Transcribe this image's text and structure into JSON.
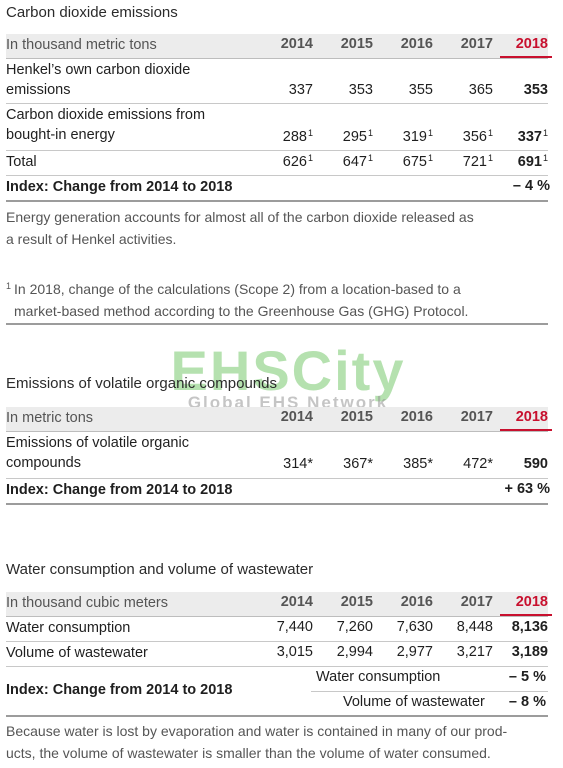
{
  "co2": {
    "title": "Carbon dioxide emissions",
    "unit_label": "In thousand metric tons",
    "years": [
      "2014",
      "2015",
      "2016",
      "2017",
      "2018"
    ],
    "rows": [
      {
        "label_line1": "Henkel’s own carbon dioxide",
        "label_line2": "emissions",
        "values": [
          "337",
          "353",
          "355",
          "365",
          "353"
        ]
      },
      {
        "label_line1": "Carbon dioxide emissions from",
        "label_line2": "bought-in energy",
        "values": [
          "288",
          "295",
          "319",
          "356",
          "337"
        ],
        "note": "1"
      },
      {
        "label": "Total",
        "values": [
          "626",
          "647",
          "675",
          "721",
          "691"
        ],
        "note": "1"
      }
    ],
    "index": {
      "label": "Index: Change from 2014 to 2018",
      "value": "– 4 %"
    },
    "paragraph_line1": "Energy generation accounts for almost all of the carbon dioxide released as",
    "paragraph_line2": "a result of Henkel activities.",
    "footnote_mark": "1",
    "footnote_line1": "In 2018, change of the calculations (Scope 2) from a location-based to a",
    "footnote_line2": "market-based method according to the Greenhouse Gas (GHG) Protocol."
  },
  "voc": {
    "title": "Emissions of volatile organic compounds",
    "unit_label": "In metric tons",
    "years": [
      "2014",
      "2015",
      "2016",
      "2017",
      "2018"
    ],
    "row": {
      "label_line1": "Emissions of volatile organic",
      "label_line2": "compounds",
      "values": [
        "314*",
        "367*",
        "385*",
        "472*",
        "590"
      ]
    },
    "index": {
      "label": "Index: Change from 2014 to 2018",
      "value": "+ 63 %"
    }
  },
  "water": {
    "title": "Water consumption and volume of wastewater",
    "unit_label": "In thousand cubic meters",
    "years": [
      "2014",
      "2015",
      "2016",
      "2017",
      "2018"
    ],
    "rows": [
      {
        "label": "Water consumption",
        "values": [
          "7,440",
          "7,260",
          "7,630",
          "8,448",
          "8,136"
        ]
      },
      {
        "label": "Volume of wastewater",
        "values": [
          "3,015",
          "2,994",
          "2,977",
          "3,217",
          "3,189"
        ]
      }
    ],
    "index": {
      "label": "Index: Change from 2014 to 2018",
      "sub": [
        {
          "label": "Water consumption",
          "value": "– 5 %"
        },
        {
          "label": "Volume of wastewater",
          "value": "– 8 %"
        }
      ]
    },
    "paragraph_line1": "Because water is lost by evaporation and water is contained in many of our prod-",
    "paragraph_line2": "ucts, the volume of wastewater is smaller than the volume of water consumed."
  },
  "watermark": {
    "big": "EHSCity",
    "small": "Global EHS Network"
  },
  "colors": {
    "accent": "#c8102e",
    "header_bg": "#ececec"
  }
}
